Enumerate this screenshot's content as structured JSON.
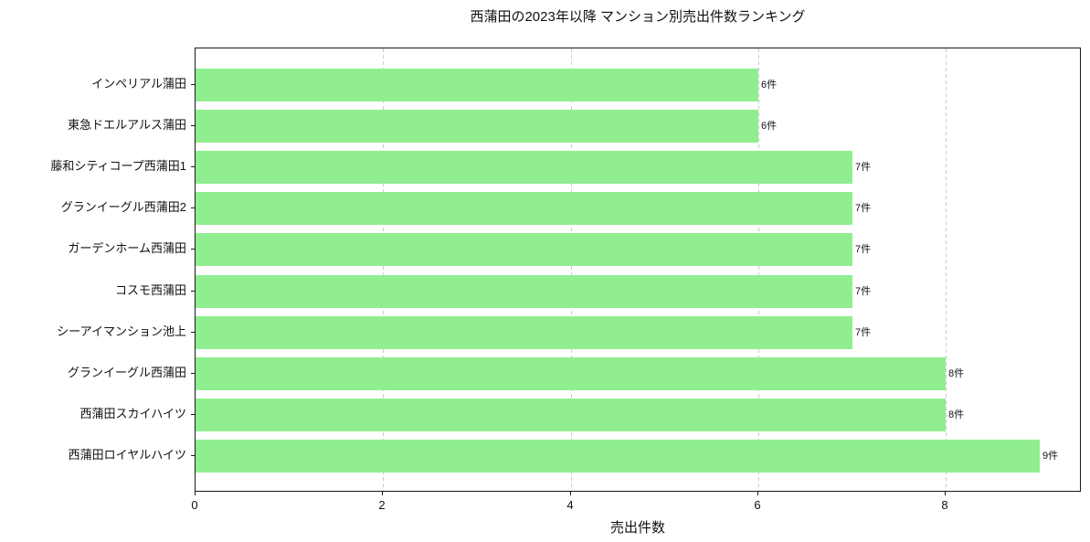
{
  "title": "西蒲田の2023年以降 マンション別売出件数ランキング",
  "chart_data": {
    "type": "bar",
    "orientation": "horizontal",
    "title": "西蒲田の2023年以降 マンション別売出件数ランキング",
    "xlabel": "売出件数",
    "ylabel": "",
    "categories": [
      "インペリアル蒲田",
      "東急ドエルアルス蒲田",
      "藤和シティコープ西蒲田1",
      "グランイーグル西蒲田2",
      "ガーデンホーム西蒲田",
      "コスモ西蒲田",
      "シーアイマンション池上",
      "グランイーグル西蒲田",
      "西蒲田スカイハイツ",
      "西蒲田ロイヤルハイツ"
    ],
    "values": [
      6,
      6,
      7,
      7,
      7,
      7,
      7,
      8,
      8,
      9
    ],
    "value_labels": [
      "6件",
      "6件",
      "7件",
      "7件",
      "7件",
      "7件",
      "7件",
      "8件",
      "8件",
      "9件"
    ],
    "xlim": [
      0,
      9.45
    ],
    "xticks": [
      0,
      2,
      4,
      6,
      8
    ],
    "xtick_labels": [
      "0",
      "2",
      "4",
      "6",
      "8"
    ],
    "grid": "vertical-dashed",
    "legend_position": "none",
    "bar_color": "#90ee90",
    "unit_suffix": "件"
  },
  "colors": {
    "bar": "#90ee90",
    "grid": "#cccccc",
    "axis": "#1a1a1a",
    "text": "#111111",
    "background": "#ffffff"
  }
}
